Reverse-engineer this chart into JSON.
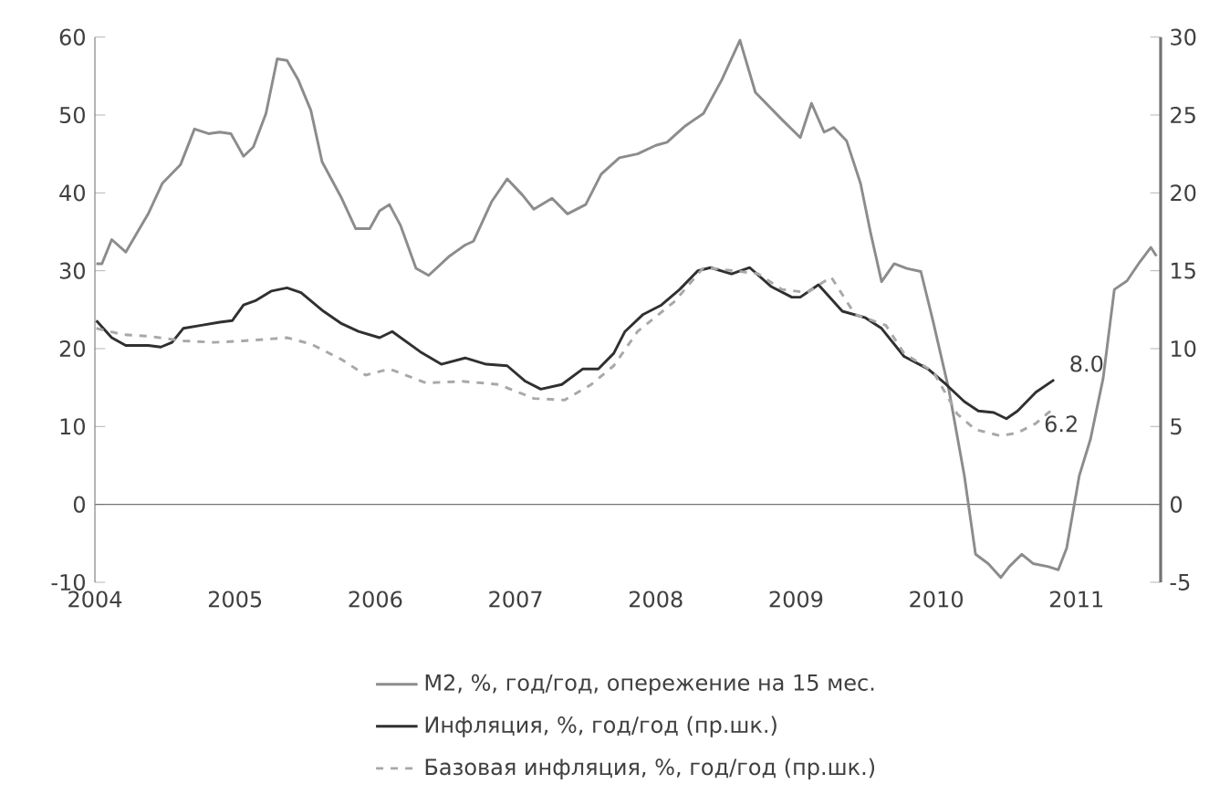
{
  "chart_data": {
    "type": "line",
    "xlim": [
      2004,
      2011.6
    ],
    "xticks": [
      2004,
      2005,
      2006,
      2007,
      2008,
      2009,
      2010,
      2011
    ],
    "ylim": [
      -10,
      60
    ],
    "yticks": [
      -10,
      0,
      10,
      20,
      30,
      40,
      50,
      60
    ],
    "y2lim": [
      -5,
      30
    ],
    "y2ticks": [
      -5,
      0,
      5,
      10,
      15,
      20,
      25,
      30
    ],
    "legend": "bottom",
    "annotations": [
      "8.0",
      "6.2"
    ],
    "series": [
      {
        "name": "М2, %, год/год, опережение на 15 мес.",
        "color": "#8c8c8c",
        "line_style": "solid",
        "x": [
          2004.01,
          2004.05,
          2004.12,
          2004.22,
          2004.38,
          2004.48,
          2004.61,
          2004.71,
          2004.81,
          2004.89,
          2004.97,
          2005.06,
          2005.13,
          2005.22,
          2005.3,
          2005.37,
          2005.45,
          2005.54,
          2005.62,
          2005.76,
          2005.86,
          2005.96,
          2006.03,
          2006.1,
          2006.18,
          2006.29,
          2006.38,
          2006.53,
          2006.64,
          2006.7,
          2006.83,
          2006.94,
          2007.05,
          2007.13,
          2007.26,
          2007.37,
          2007.5,
          2007.61,
          2007.74,
          2007.87,
          2008.0,
          2008.08,
          2008.21,
          2008.34,
          2008.47,
          2008.6,
          2008.71,
          2008.9,
          2009.03,
          2009.11,
          2009.2,
          2009.27,
          2009.36,
          2009.46,
          2009.53,
          2009.61,
          2009.7,
          2009.79,
          2009.89,
          2009.98,
          2010.09,
          2010.2,
          2010.28,
          2010.37,
          2010.46,
          2010.52,
          2010.61,
          2010.69,
          2010.8,
          2010.87,
          2010.93,
          2011.02,
          2011.1,
          2011.19,
          2011.27,
          2011.36,
          2011.45,
          2011.53,
          2011.57
        ],
        "values": [
          30.9,
          30.9,
          34.0,
          32.4,
          37.3,
          41.2,
          43.6,
          48.2,
          47.6,
          47.8,
          47.6,
          44.7,
          45.9,
          50.2,
          57.2,
          57.0,
          54.5,
          50.6,
          44.0,
          39.3,
          35.4,
          35.4,
          37.7,
          38.5,
          35.8,
          30.3,
          29.4,
          31.9,
          33.3,
          33.8,
          38.9,
          41.8,
          39.7,
          37.9,
          39.3,
          37.3,
          38.5,
          42.4,
          44.5,
          45.0,
          46.1,
          46.5,
          48.6,
          50.2,
          54.5,
          59.6,
          52.9,
          49.4,
          47.1,
          51.5,
          47.8,
          48.4,
          46.7,
          41.2,
          35.0,
          28.6,
          30.9,
          30.3,
          29.9,
          23.3,
          14.7,
          3.7,
          -6.4,
          -7.6,
          -9.4,
          -8.0,
          -6.4,
          -7.6,
          -8.0,
          -8.4,
          -5.6,
          3.7,
          8.4,
          16.2,
          27.6,
          28.7,
          31.1,
          33.0,
          31.9
        ]
      },
      {
        "name": "Инфляция, %, год/год (пр.шк.)",
        "color": "#303030",
        "line_style": "solid",
        "axis": "y2",
        "x": [
          2004.01,
          2004.12,
          2004.22,
          2004.38,
          2004.47,
          2004.55,
          2004.63,
          2004.76,
          2004.89,
          2004.98,
          2005.06,
          2005.15,
          2005.26,
          2005.37,
          2005.47,
          2005.63,
          2005.76,
          2005.88,
          2006.03,
          2006.12,
          2006.32,
          2006.47,
          2006.64,
          2006.79,
          2006.94,
          2007.07,
          2007.18,
          2007.33,
          2007.48,
          2007.59,
          2007.7,
          2007.78,
          2007.91,
          2008.04,
          2008.17,
          2008.3,
          2008.39,
          2008.54,
          2008.67,
          2008.82,
          2008.97,
          2009.03,
          2009.16,
          2009.33,
          2009.49,
          2009.61,
          2009.77,
          2009.94,
          2010.07,
          2010.2,
          2010.3,
          2010.41,
          2010.5,
          2010.58,
          2010.71,
          2010.84
        ],
        "values": [
          11.8,
          10.7,
          10.2,
          10.2,
          10.1,
          10.4,
          11.3,
          11.5,
          11.7,
          11.8,
          12.8,
          13.1,
          13.7,
          13.9,
          13.6,
          12.4,
          11.6,
          11.1,
          10.7,
          11.1,
          9.8,
          9.0,
          9.4,
          9.0,
          8.9,
          7.9,
          7.4,
          7.7,
          8.7,
          8.7,
          9.7,
          11.1,
          12.2,
          12.8,
          13.8,
          15.0,
          15.2,
          14.8,
          15.2,
          14.0,
          13.3,
          13.3,
          14.1,
          12.4,
          12.0,
          11.3,
          9.5,
          8.7,
          7.7,
          6.6,
          6.0,
          5.9,
          5.5,
          6.0,
          7.2,
          8.0
        ]
      },
      {
        "name": "Базовая инфляция, %, год/год (пр.шк.)",
        "color": "#a8a8a8",
        "line_style": "dashed",
        "axis": "y2",
        "x": [
          2004.01,
          2004.2,
          2004.38,
          2004.63,
          2004.85,
          2005.06,
          2005.37,
          2005.54,
          2005.76,
          2005.93,
          2006.1,
          2006.36,
          2006.62,
          2006.88,
          2007.13,
          2007.35,
          2007.54,
          2007.7,
          2007.87,
          2008.13,
          2008.34,
          2008.56,
          2008.73,
          2008.9,
          2009.08,
          2009.25,
          2009.42,
          2009.64,
          2009.77,
          2009.98,
          2010.15,
          2010.28,
          2010.46,
          2010.58,
          2010.71,
          2010.84
        ],
        "values": [
          11.3,
          10.9,
          10.8,
          10.5,
          10.4,
          10.5,
          10.7,
          10.3,
          9.3,
          8.3,
          8.7,
          7.8,
          7.9,
          7.7,
          6.8,
          6.7,
          7.7,
          8.9,
          11.1,
          13.0,
          15.2,
          15.0,
          14.8,
          13.8,
          13.6,
          14.6,
          12.2,
          11.5,
          9.7,
          8.5,
          5.8,
          4.8,
          4.4,
          4.6,
          5.2,
          6.2
        ]
      }
    ]
  }
}
